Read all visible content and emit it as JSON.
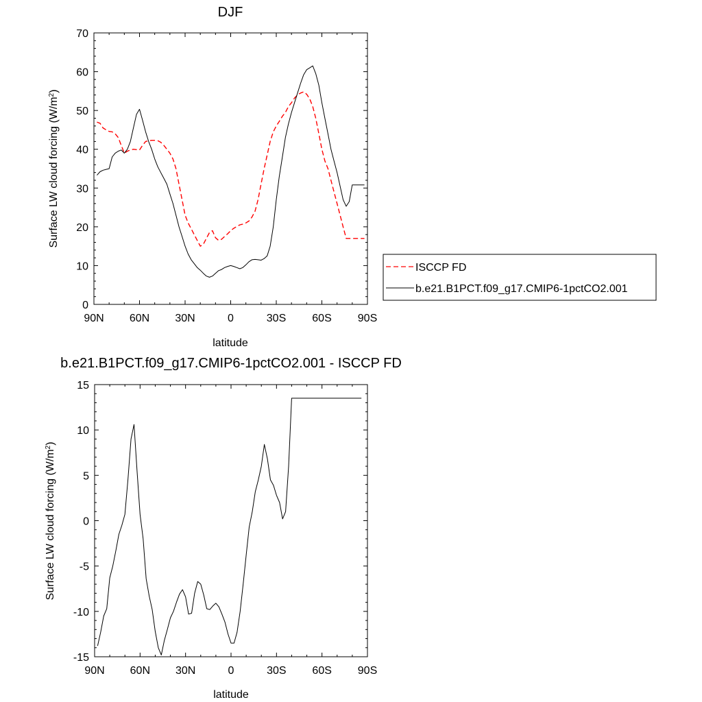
{
  "chart_data": [
    {
      "type": "line",
      "title": "DJF",
      "xlabel": "latitude",
      "ylabel": "Surface LW cloud forcing (W/m",
      "ylabel_sup": "2",
      "ylabel_close": ")",
      "xlim": [
        90,
        -90
      ],
      "ylim": [
        0,
        70
      ],
      "x_ticks": [
        90,
        60,
        30,
        0,
        -30,
        -60,
        -90
      ],
      "x_tick_labels": [
        "90N",
        "60N",
        "30N",
        "0",
        "30S",
        "60S",
        "90S"
      ],
      "y_ticks": [
        0,
        10,
        20,
        30,
        40,
        50,
        60,
        70
      ],
      "y_tick_labels": [
        "0",
        "10",
        "20",
        "30",
        "40",
        "50",
        "60",
        "70"
      ],
      "grid": false,
      "legend_position": "right",
      "series": [
        {
          "name": "ISCCP FD",
          "color": "#ff0000",
          "dash": "dashed",
          "x": [
            88,
            86,
            84,
            82,
            80,
            78,
            76,
            74,
            72,
            70,
            68,
            66,
            64,
            62,
            60,
            58,
            56,
            54,
            52,
            50,
            48,
            46,
            44,
            42,
            40,
            38,
            36,
            34,
            32,
            30,
            28,
            26,
            24,
            22,
            20,
            18,
            16,
            14,
            12,
            10,
            8,
            6,
            4,
            2,
            0,
            -2,
            -4,
            -6,
            -8,
            -10,
            -12,
            -14,
            -16,
            -18,
            -20,
            -22,
            -24,
            -26,
            -28,
            -30,
            -32,
            -34,
            -36,
            -38,
            -40,
            -42,
            -44,
            -46,
            -48,
            -50,
            -52,
            -54,
            -56,
            -58,
            -60,
            -62,
            -64,
            -66,
            -68,
            -70,
            -72,
            -74,
            -76,
            -78,
            -80,
            -82,
            -84,
            -86,
            -88
          ],
          "y": [
            47,
            46.7,
            45.5,
            45,
            44.6,
            44.5,
            44,
            43,
            41,
            39,
            39.5,
            39.8,
            40,
            39.9,
            39.8,
            41,
            42,
            42.2,
            42.3,
            42.3,
            42.2,
            41.8,
            41,
            40,
            39,
            37.5,
            35,
            31,
            27,
            23,
            21,
            19.5,
            18,
            16.5,
            15,
            15.5,
            17,
            18.5,
            19,
            17.2,
            16.5,
            16.8,
            17.5,
            18.2,
            19,
            19.6,
            20.1,
            20.5,
            20.7,
            21,
            21.5,
            22.5,
            24,
            27,
            31,
            35,
            38.5,
            42,
            44.5,
            46,
            47.2,
            48.5,
            49.5,
            51,
            52,
            53.2,
            54,
            54.5,
            54.8,
            54.2,
            53,
            51,
            48,
            44,
            40,
            37,
            35,
            32,
            29,
            26,
            23,
            20,
            17,
            17,
            17,
            17,
            17,
            17,
            17
          ]
        },
        {
          "name": "b.e21.B1PCT.f09_g17.CMIP6-1pctCO2.001",
          "color": "#000000",
          "dash": "solid",
          "x": [
            88,
            86,
            84,
            82,
            80,
            78,
            76,
            74,
            72,
            70,
            68,
            66,
            64,
            62,
            60,
            58,
            56,
            54,
            52,
            50,
            48,
            46,
            44,
            42,
            40,
            38,
            36,
            34,
            32,
            30,
            28,
            26,
            24,
            22,
            20,
            18,
            16,
            14,
            12,
            10,
            8,
            6,
            4,
            2,
            0,
            -2,
            -4,
            -6,
            -8,
            -10,
            -12,
            -14,
            -16,
            -18,
            -20,
            -22,
            -24,
            -26,
            -28,
            -30,
            -32,
            -34,
            -36,
            -38,
            -40,
            -42,
            -44,
            -46,
            -48,
            -50,
            -52,
            -54,
            -56,
            -58,
            -60,
            -62,
            -64,
            -66,
            -68,
            -70,
            -72,
            -74,
            -76,
            -78,
            -80,
            -82,
            -84,
            -86,
            -88
          ],
          "y": [
            33.3,
            34.2,
            34.6,
            34.8,
            35,
            38,
            39,
            39.5,
            39.8,
            39,
            40,
            42,
            45.5,
            49,
            50.3,
            47.5,
            44.5,
            42,
            40,
            37.5,
            35.5,
            34,
            32.5,
            31,
            28.5,
            26,
            23,
            20,
            17.5,
            15,
            13,
            11.5,
            10.5,
            9.5,
            8.8,
            8,
            7.3,
            7,
            7.3,
            8,
            8.7,
            9,
            9.5,
            9.8,
            10,
            9.8,
            9.5,
            9.2,
            9.5,
            10.2,
            11,
            11.5,
            11.6,
            11.5,
            11.4,
            11.8,
            12.5,
            15,
            20,
            27,
            33,
            38,
            43,
            46.5,
            49.5,
            52,
            54.5,
            57,
            59.2,
            60.5,
            61,
            61.5,
            59.5,
            56.5,
            52,
            48,
            44,
            40,
            37,
            34,
            30.5,
            27,
            25.3,
            26.5,
            30.8,
            30.8,
            30.8,
            30.8,
            30.8
          ]
        }
      ]
    },
    {
      "type": "line",
      "title": "b.e21.B1PCT.f09_g17.CMIP6-1pctCO2.001 - ISCCP FD",
      "xlabel": "latitude",
      "ylabel": "Surface LW cloud forcing (W/m",
      "ylabel_sup": "2",
      "ylabel_close": ")",
      "xlim": [
        90,
        -90
      ],
      "ylim": [
        -15,
        15
      ],
      "x_ticks": [
        90,
        60,
        30,
        0,
        -30,
        -60,
        -90
      ],
      "x_tick_labels": [
        "90N",
        "60N",
        "30N",
        "0",
        "30S",
        "60S",
        "90S"
      ],
      "y_ticks": [
        -15,
        -10,
        -5,
        0,
        5,
        10,
        15
      ],
      "y_tick_labels": [
        "-15",
        "-10",
        "-5",
        "0",
        "5",
        "10",
        "15"
      ],
      "grid": false,
      "series": [
        {
          "color": "#000000",
          "dash": "solid",
          "x": [
            88,
            86,
            84,
            82,
            80,
            78,
            76,
            74,
            72,
            70,
            68,
            66,
            64,
            62,
            60,
            58,
            56,
            54,
            52,
            50,
            48,
            46,
            44,
            42,
            40,
            38,
            36,
            34,
            32,
            30,
            28,
            26,
            24,
            22,
            20,
            18,
            16,
            14,
            12,
            10,
            8,
            6,
            4,
            2,
            0,
            -2,
            -4,
            -6,
            -8,
            -10,
            -12,
            -14,
            -16,
            -18,
            -20,
            -22,
            -24,
            -26,
            -28,
            -30,
            -32,
            -34,
            -36,
            -38,
            -40,
            -42,
            -44,
            -46,
            -48,
            -50,
            -52,
            -54,
            -56,
            -58,
            -60,
            -62,
            -64,
            -66,
            -68,
            -70,
            -72,
            -74,
            -76,
            -78,
            -80,
            -82,
            -84,
            -86
          ],
          "y": [
            -13.8,
            -12.3,
            -10.5,
            -9.7,
            -6.3,
            -5,
            -3.3,
            -1.5,
            -0.5,
            0.7,
            4.5,
            9,
            10.6,
            5.5,
            0.7,
            -2,
            -6.4,
            -8.3,
            -9.8,
            -12.2,
            -14,
            -14.8,
            -13.2,
            -12,
            -10.7,
            -10,
            -9,
            -8.1,
            -7.6,
            -8.4,
            -10.3,
            -10.2,
            -8,
            -6.7,
            -7,
            -8.2,
            -9.7,
            -9.8,
            -9.4,
            -9.1,
            -9.5,
            -10.3,
            -11.2,
            -12.5,
            -13.5,
            -13.5,
            -12.3,
            -10,
            -7,
            -3.8,
            -0.7,
            1,
            3.2,
            4.5,
            6,
            8.4,
            6.8,
            4.5,
            3.9,
            2.8,
            2,
            0.2,
            1,
            6,
            13.5,
            13.5,
            13.5,
            13.5,
            13.5,
            13.5,
            13.5,
            13.5,
            13.5,
            13.5,
            13.5,
            13.5,
            13.5,
            13.5,
            13.5,
            13.5,
            13.5,
            13.5,
            13.5,
            13.5,
            13.5,
            13.5,
            13.5,
            13.5
          ]
        }
      ]
    }
  ]
}
